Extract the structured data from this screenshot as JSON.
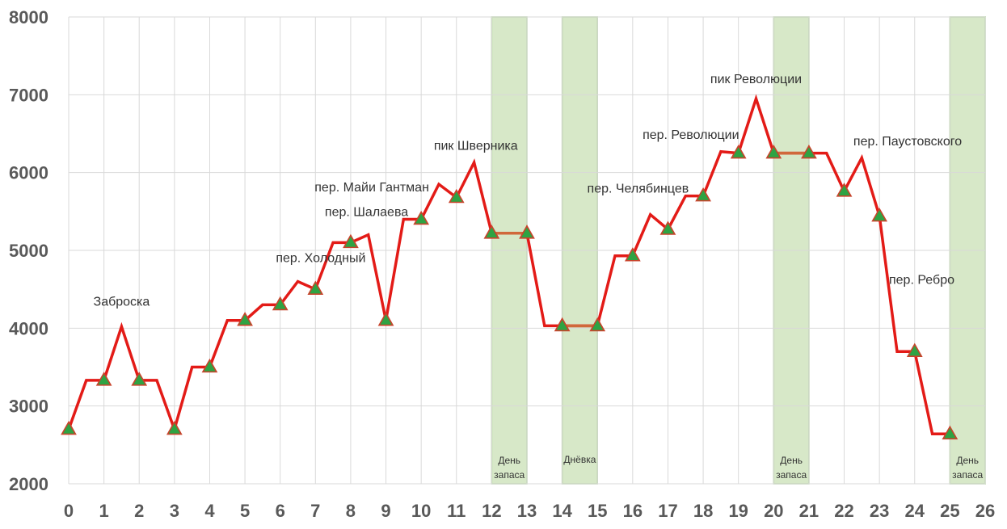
{
  "colors": {
    "line": "#e31b17",
    "flat_segment": "#d0683b",
    "marker_fill": "#2ea343",
    "marker_stroke": "#c8432b",
    "band": "#d7e8c8",
    "band_edge": "#a9d08e",
    "grid": "#d9d9d9",
    "tick_text": "#595959"
  },
  "chart_data": {
    "type": "line",
    "xlim": [
      0,
      26
    ],
    "ylim": [
      2000,
      8000
    ],
    "x_ticks": [
      "0",
      "1",
      "2",
      "3",
      "4",
      "5",
      "6",
      "7",
      "8",
      "9",
      "10",
      "11",
      "12",
      "13",
      "14",
      "15",
      "16",
      "17",
      "18",
      "19",
      "20",
      "21",
      "22",
      "23",
      "24",
      "25",
      "26"
    ],
    "y_ticks": [
      "2000",
      "3000",
      "4000",
      "5000",
      "6000",
      "7000",
      "8000"
    ],
    "grid": "on",
    "series": [
      {
        "points": [
          [
            0,
            2700
          ],
          [
            0.5,
            3330
          ],
          [
            1,
            3330
          ],
          [
            1.5,
            4020
          ],
          [
            2,
            3330
          ],
          [
            2.5,
            3330
          ],
          [
            3,
            2700
          ],
          [
            3.5,
            3500
          ],
          [
            4,
            3500
          ],
          [
            4.5,
            4100
          ],
          [
            5,
            4100
          ],
          [
            5.5,
            4300
          ],
          [
            6,
            4300
          ],
          [
            6.5,
            4600
          ],
          [
            7,
            4500
          ],
          [
            7.5,
            5100
          ],
          [
            8,
            5100
          ],
          [
            8.5,
            5200
          ],
          [
            9,
            4100
          ],
          [
            9.5,
            5400
          ],
          [
            10,
            5400
          ],
          [
            10.5,
            5850
          ],
          [
            11,
            5680
          ],
          [
            11.5,
            6130
          ],
          [
            12,
            5220
          ],
          [
            13,
            5220
          ],
          [
            13.5,
            4030
          ],
          [
            14,
            4030
          ],
          [
            15,
            4030
          ],
          [
            15.5,
            4930
          ],
          [
            16,
            4930
          ],
          [
            16.5,
            5460
          ],
          [
            17,
            5270
          ],
          [
            17.5,
            5700
          ],
          [
            18,
            5700
          ],
          [
            18.5,
            6270
          ],
          [
            19,
            6250
          ],
          [
            19.5,
            6950
          ],
          [
            20,
            6250
          ],
          [
            21,
            6250
          ],
          [
            21.5,
            6250
          ],
          [
            22,
            5760
          ],
          [
            22.5,
            6190
          ],
          [
            23,
            5440
          ],
          [
            23.5,
            3700
          ],
          [
            24,
            3700
          ],
          [
            24.5,
            2640
          ],
          [
            25,
            2640
          ]
        ],
        "marker_x": [
          0,
          1,
          2,
          3,
          4,
          5,
          6,
          7,
          8,
          9,
          10,
          11,
          12,
          13,
          14,
          15,
          16,
          17,
          18,
          19,
          20,
          21,
          22,
          23,
          24,
          25
        ],
        "flat_highlight_segments": [
          [
            12,
            13
          ],
          [
            14,
            15
          ],
          [
            20,
            21
          ]
        ]
      }
    ],
    "bands": [
      {
        "start": 12,
        "end": 13,
        "label": [
          "День",
          "запаса"
        ]
      },
      {
        "start": 14,
        "end": 15,
        "label": [
          "Днёвка"
        ]
      },
      {
        "start": 20,
        "end": 21,
        "label": [
          "День",
          "запаса"
        ]
      },
      {
        "start": 25,
        "end": 26,
        "label": [
          "День",
          "запаса"
        ]
      }
    ],
    "annotations": [
      {
        "text": "Заброска",
        "x": 1.5,
        "y": 4290
      },
      {
        "text": "пер. Холодный",
        "x": 7.15,
        "y": 4850
      },
      {
        "text": "пер. Шалаева",
        "x": 8.45,
        "y": 5440
      },
      {
        "text": "пер. Майи Гантман",
        "x": 8.6,
        "y": 5760
      },
      {
        "text": "пик Шверника",
        "x": 11.55,
        "y": 6290
      },
      {
        "text": "пер. Челябинцев",
        "x": 16.15,
        "y": 5740
      },
      {
        "text": "пер. Революции",
        "x": 17.65,
        "y": 6430
      },
      {
        "text": "пик Революции",
        "x": 19.5,
        "y": 7150
      },
      {
        "text": "пер. Паустовского",
        "x": 23.8,
        "y": 6350
      },
      {
        "text": "пер. Ребро",
        "x": 24.2,
        "y": 4570
      }
    ]
  }
}
